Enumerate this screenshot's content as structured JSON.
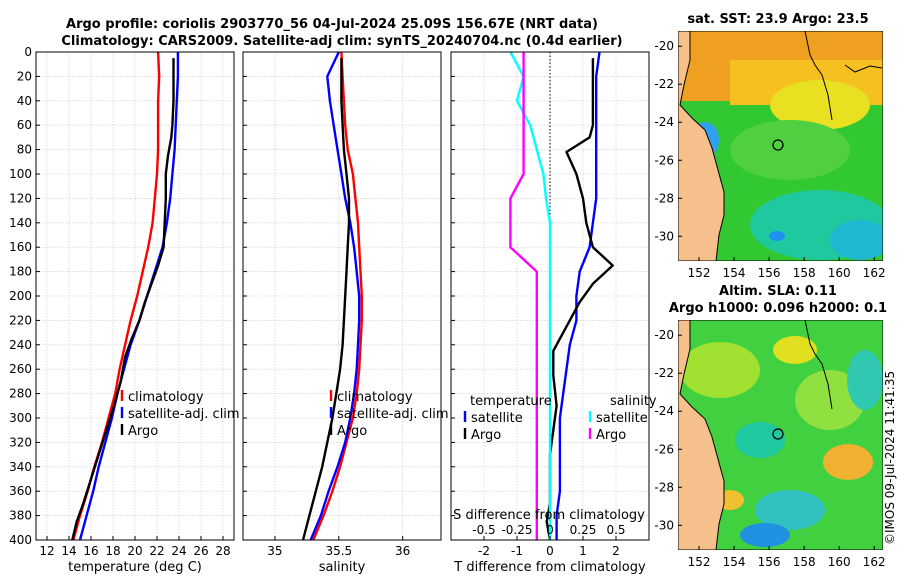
{
  "title_line1": "Argo profile: coriolis 2903770_56 04-Jul-2024 25.09S 156.67E (NRT data)",
  "title_line2": "Climatology: CARS2009. Satellite-adj clim: synTS_20240704.nc (0.4d earlier)",
  "copyright": "©IMOS 09-Jul-2024 11:41:35",
  "colors": {
    "climatology": "#ff0000",
    "satellite": "#0000ff",
    "argo": "#000000",
    "sal_satellite": "#00ffff",
    "sal_argo": "#ff00ff",
    "grid": "#c8c8c8",
    "land": "#f6c08c"
  },
  "chart_data": [
    {
      "type": "line",
      "name": "temperature",
      "xlabel": "temperature (deg C)",
      "ylabel": "",
      "xlim": [
        11,
        29
      ],
      "ylim": [
        400,
        0
      ],
      "xticks": [
        12,
        14,
        16,
        18,
        20,
        22,
        24,
        26,
        28
      ],
      "yticks": [
        0,
        20,
        40,
        60,
        80,
        100,
        120,
        140,
        160,
        180,
        200,
        220,
        240,
        260,
        280,
        300,
        320,
        340,
        360,
        380,
        400
      ],
      "legend": [
        "climatology",
        "satellite-adj. clim",
        "Argo"
      ],
      "series": [
        {
          "name": "climatology",
          "color": "#ff0000",
          "points": [
            [
              22.1,
              0
            ],
            [
              22.2,
              20
            ],
            [
              22.1,
              40
            ],
            [
              22.1,
              60
            ],
            [
              22.1,
              80
            ],
            [
              22.0,
              100
            ],
            [
              21.8,
              120
            ],
            [
              21.6,
              140
            ],
            [
              21.2,
              160
            ],
            [
              20.7,
              180
            ],
            [
              20.2,
              200
            ],
            [
              19.6,
              220
            ],
            [
              19.1,
              240
            ],
            [
              18.6,
              260
            ],
            [
              18.2,
              280
            ],
            [
              17.6,
              300
            ],
            [
              17.0,
              320
            ],
            [
              16.3,
              340
            ],
            [
              15.7,
              360
            ],
            [
              15.0,
              380
            ],
            [
              14.4,
              400
            ]
          ]
        },
        {
          "name": "satellite-adj. clim",
          "color": "#0000ff",
          "points": [
            [
              23.9,
              0
            ],
            [
              23.9,
              20
            ],
            [
              23.8,
              40
            ],
            [
              23.7,
              60
            ],
            [
              23.6,
              80
            ],
            [
              23.4,
              100
            ],
            [
              23.2,
              120
            ],
            [
              22.9,
              140
            ],
            [
              22.5,
              160
            ],
            [
              21.8,
              180
            ],
            [
              21.1,
              200
            ],
            [
              20.4,
              220
            ],
            [
              19.6,
              240
            ],
            [
              19.0,
              260
            ],
            [
              18.4,
              280
            ],
            [
              17.9,
              300
            ],
            [
              17.3,
              320
            ],
            [
              16.7,
              340
            ],
            [
              16.2,
              360
            ],
            [
              15.6,
              380
            ],
            [
              15.0,
              400
            ]
          ]
        },
        {
          "name": "Argo",
          "color": "#000000",
          "points": [
            [
              23.5,
              5
            ],
            [
              23.5,
              20
            ],
            [
              23.5,
              40
            ],
            [
              23.4,
              60
            ],
            [
              23.3,
              70
            ],
            [
              23.0,
              85
            ],
            [
              22.8,
              100
            ],
            [
              22.8,
              120
            ],
            [
              22.7,
              140
            ],
            [
              22.6,
              160
            ],
            [
              22.1,
              175
            ],
            [
              21.5,
              190
            ],
            [
              20.9,
              205
            ],
            [
              20.4,
              220
            ],
            [
              19.7,
              235
            ],
            [
              19.1,
              250
            ],
            [
              18.7,
              270
            ],
            [
              18.1,
              290
            ],
            [
              17.4,
              310
            ],
            [
              16.7,
              330
            ],
            [
              16.0,
              350
            ],
            [
              15.3,
              370
            ],
            [
              14.7,
              385
            ],
            [
              14.3,
              400
            ]
          ]
        }
      ]
    },
    {
      "type": "line",
      "name": "salinity",
      "xlabel": "salinity",
      "xlim": [
        34.75,
        36.3
      ],
      "ylim": [
        400,
        0
      ],
      "xticks": [
        35,
        35.5,
        36
      ],
      "xticklabels": [
        "35",
        "35.5",
        "36"
      ],
      "legend": [
        "climatology",
        "satellite-adj. clim",
        "Argo"
      ],
      "series": [
        {
          "name": "climatology",
          "color": "#ff0000",
          "points": [
            [
              35.52,
              0
            ],
            [
              35.53,
              20
            ],
            [
              35.54,
              40
            ],
            [
              35.55,
              60
            ],
            [
              35.57,
              80
            ],
            [
              35.61,
              100
            ],
            [
              35.63,
              120
            ],
            [
              35.65,
              140
            ],
            [
              35.66,
              160
            ],
            [
              35.67,
              180
            ],
            [
              35.68,
              200
            ],
            [
              35.68,
              220
            ],
            [
              35.67,
              240
            ],
            [
              35.66,
              260
            ],
            [
              35.64,
              280
            ],
            [
              35.61,
              300
            ],
            [
              35.56,
              320
            ],
            [
              35.51,
              340
            ],
            [
              35.45,
              360
            ],
            [
              35.38,
              380
            ],
            [
              35.3,
              400
            ]
          ]
        },
        {
          "name": "satellite-adj. clim",
          "color": "#0000ff",
          "points": [
            [
              35.5,
              0
            ],
            [
              35.41,
              20
            ],
            [
              35.43,
              40
            ],
            [
              35.46,
              60
            ],
            [
              35.49,
              80
            ],
            [
              35.52,
              100
            ],
            [
              35.55,
              120
            ],
            [
              35.59,
              140
            ],
            [
              35.62,
              160
            ],
            [
              35.64,
              180
            ],
            [
              35.66,
              200
            ],
            [
              35.66,
              220
            ],
            [
              35.65,
              240
            ],
            [
              35.64,
              260
            ],
            [
              35.62,
              280
            ],
            [
              35.59,
              300
            ],
            [
              35.55,
              320
            ],
            [
              35.49,
              340
            ],
            [
              35.42,
              360
            ],
            [
              35.36,
              380
            ],
            [
              35.28,
              400
            ]
          ]
        },
        {
          "name": "Argo",
          "color": "#000000",
          "points": [
            [
              35.52,
              5
            ],
            [
              35.52,
              20
            ],
            [
              35.52,
              40
            ],
            [
              35.53,
              60
            ],
            [
              35.54,
              80
            ],
            [
              35.56,
              100
            ],
            [
              35.58,
              120
            ],
            [
              35.58,
              140
            ],
            [
              35.57,
              160
            ],
            [
              35.56,
              180
            ],
            [
              35.55,
              200
            ],
            [
              35.54,
              220
            ],
            [
              35.53,
              240
            ],
            [
              35.51,
              260
            ],
            [
              35.48,
              280
            ],
            [
              35.45,
              300
            ],
            [
              35.41,
              320
            ],
            [
              35.37,
              340
            ],
            [
              35.32,
              360
            ],
            [
              35.27,
              380
            ],
            [
              35.22,
              400
            ]
          ]
        }
      ]
    },
    {
      "type": "line",
      "name": "differences",
      "xlabel": "T difference from climatology",
      "top_label": "S difference from climatology",
      "xlim": [
        -3,
        3
      ],
      "ylim": [
        400,
        0
      ],
      "xticks": [
        -2,
        -1,
        0,
        1,
        2
      ],
      "top_ticks": [
        "-0.5",
        "-0.25",
        "0",
        "0.25",
        "0.5"
      ],
      "top_tick_values": [
        -0.5,
        -0.25,
        0,
        0.25,
        0.5
      ],
      "s_scale": 4,
      "legend_temperature_title": "temperature",
      "legend_salinity_title": "salinity",
      "legend_temperature": [
        "satellite",
        "Argo"
      ],
      "legend_salinity": [
        "satellite",
        "Argo"
      ],
      "series": [
        {
          "name": "T satellite",
          "color": "#0000ff",
          "points": [
            [
              1.5,
              0
            ],
            [
              1.4,
              20
            ],
            [
              1.4,
              40
            ],
            [
              1.4,
              60
            ],
            [
              1.4,
              80
            ],
            [
              1.4,
              100
            ],
            [
              1.4,
              120
            ],
            [
              1.3,
              140
            ],
            [
              1.2,
              160
            ],
            [
              0.9,
              180
            ],
            [
              0.8,
              200
            ],
            [
              0.8,
              220
            ],
            [
              0.6,
              240
            ],
            [
              0.5,
              260
            ],
            [
              0.4,
              280
            ],
            [
              0.3,
              300
            ],
            [
              0.3,
              320
            ],
            [
              0.3,
              340
            ],
            [
              0.3,
              360
            ],
            [
              0.2,
              380
            ],
            [
              0.2,
              400
            ]
          ]
        },
        {
          "name": "T Argo",
          "color": "#000000",
          "points": [
            [
              1.3,
              5
            ],
            [
              1.3,
              20
            ],
            [
              1.3,
              40
            ],
            [
              1.3,
              60
            ],
            [
              1.2,
              70
            ],
            [
              0.5,
              82
            ],
            [
              0.8,
              100
            ],
            [
              1.0,
              120
            ],
            [
              1.1,
              140
            ],
            [
              1.3,
              160
            ],
            [
              1.9,
              175
            ],
            [
              1.3,
              190
            ],
            [
              0.9,
              205
            ],
            [
              0.6,
              220
            ],
            [
              0.3,
              235
            ],
            [
              0.1,
              245
            ],
            [
              0.1,
              265
            ],
            [
              0.2,
              290
            ],
            [
              0.1,
              310
            ],
            [
              0.0,
              330
            ],
            [
              0.0,
              350
            ],
            [
              0.0,
              370
            ],
            [
              -0.1,
              385
            ],
            [
              0.0,
              400
            ]
          ]
        },
        {
          "name": "S satellite",
          "color": "#00ffff",
          "points": [
            [
              -0.3,
              0
            ],
            [
              -0.2,
              20
            ],
            [
              -0.25,
              40
            ],
            [
              -0.15,
              60
            ],
            [
              -0.1,
              80
            ],
            [
              -0.05,
              100
            ],
            [
              -0.03,
              120
            ],
            [
              0.0,
              140
            ],
            [
              0.0,
              160
            ],
            [
              0.0,
              200
            ],
            [
              0.0,
              240
            ],
            [
              0.0,
              280
            ],
            [
              0.0,
              320
            ],
            [
              0.0,
              360
            ],
            [
              0.0,
              400
            ]
          ]
        },
        {
          "name": "S Argo",
          "color": "#ff00ff",
          "points": [
            [
              -0.2,
              0
            ],
            [
              -0.2,
              20
            ],
            [
              -0.2,
              40
            ],
            [
              -0.2,
              60
            ],
            [
              -0.2,
              80
            ],
            [
              -0.2,
              100
            ],
            [
              -0.3,
              120
            ],
            [
              -0.3,
              140
            ],
            [
              -0.3,
              160
            ],
            [
              -0.1,
              180
            ],
            [
              -0.1,
              200
            ],
            [
              -0.1,
              240
            ],
            [
              -0.1,
              280
            ],
            [
              -0.1,
              320
            ],
            [
              -0.1,
              360
            ],
            [
              -0.1,
              400
            ]
          ]
        }
      ]
    },
    {
      "type": "heatmap",
      "name": "sst-map",
      "title": "sat. SST: 23.9 Argo: 23.5",
      "xticks": [
        152,
        154,
        156,
        158,
        160,
        162
      ],
      "yticks": [
        -20,
        -22,
        -24,
        -26,
        -28,
        -30
      ],
      "xlim": [
        150.8,
        162.5
      ],
      "ylim": [
        -31.3,
        -19.2
      ],
      "argo_position": [
        156.67,
        -25.09
      ]
    },
    {
      "type": "heatmap",
      "name": "sla-map",
      "title": "Altim. SLA: 0.11",
      "subtitle": "Argo h1000: 0.096 h2000: 0.1",
      "xticks": [
        152,
        154,
        156,
        158,
        160,
        162
      ],
      "yticks": [
        -20,
        -22,
        -24,
        -26,
        -28,
        -30
      ],
      "xlim": [
        150.8,
        162.5
      ],
      "ylim": [
        -31.3,
        -19.2
      ],
      "argo_position": [
        156.67,
        -25.09
      ]
    }
  ]
}
